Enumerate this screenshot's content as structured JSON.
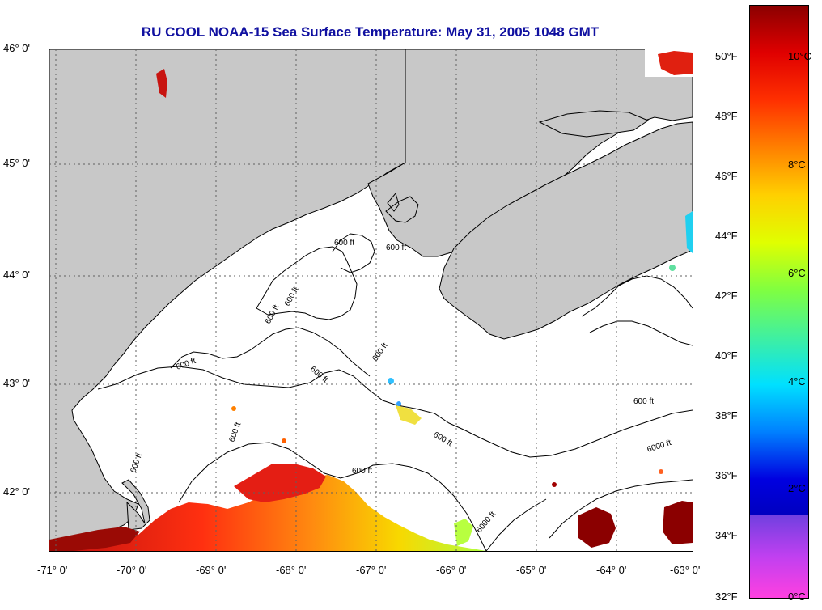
{
  "title": "RU COOL  NOAA-15  Sea Surface Temperature:  May 31, 2005 1048 GMT",
  "colors": {
    "land": "#c8c8c8",
    "coast": "#000000",
    "title": "#1010a0",
    "sst_warm": "#e02010",
    "sst_hot": "#8b0000",
    "sst_orange": "#ff8000",
    "sst_yellow": "#f8d800",
    "sst_green": "#a0ff40"
  },
  "map": {
    "lat_labels": [
      "46° 0'",
      "45° 0'",
      "44° 0'",
      "43° 0'",
      "42° 0'"
    ],
    "lon_labels": [
      "-71° 0'",
      "-70° 0'",
      "-69° 0'",
      "-68° 0'",
      "-67° 0'",
      "-66° 0'",
      "-65° 0'",
      "-64° 0'",
      "-63° 0'"
    ],
    "contour_labels": [
      {
        "text": "600 ft"
      },
      {
        "text": "600 ft"
      },
      {
        "text": "600 ft"
      },
      {
        "text": "600 ft"
      },
      {
        "text": "600 ft"
      },
      {
        "text": "600 ft"
      },
      {
        "text": "600 ft"
      },
      {
        "text": "600 ft"
      },
      {
        "text": "600 ft"
      },
      {
        "text": "600 ft"
      },
      {
        "text": "600 ft"
      },
      {
        "text": "600 ft"
      },
      {
        "text": "6000 ft"
      },
      {
        "text": "6000 ft"
      }
    ]
  },
  "colorbar": {
    "fahrenheit_labels": [
      "50°F",
      "48°F",
      "46°F",
      "44°F",
      "42°F",
      "40°F",
      "38°F",
      "36°F",
      "34°F",
      "32°F"
    ],
    "celsius_labels": [
      "10°C",
      "8°C",
      "6°C",
      "4°C",
      "2°C",
      "0°C"
    ]
  }
}
